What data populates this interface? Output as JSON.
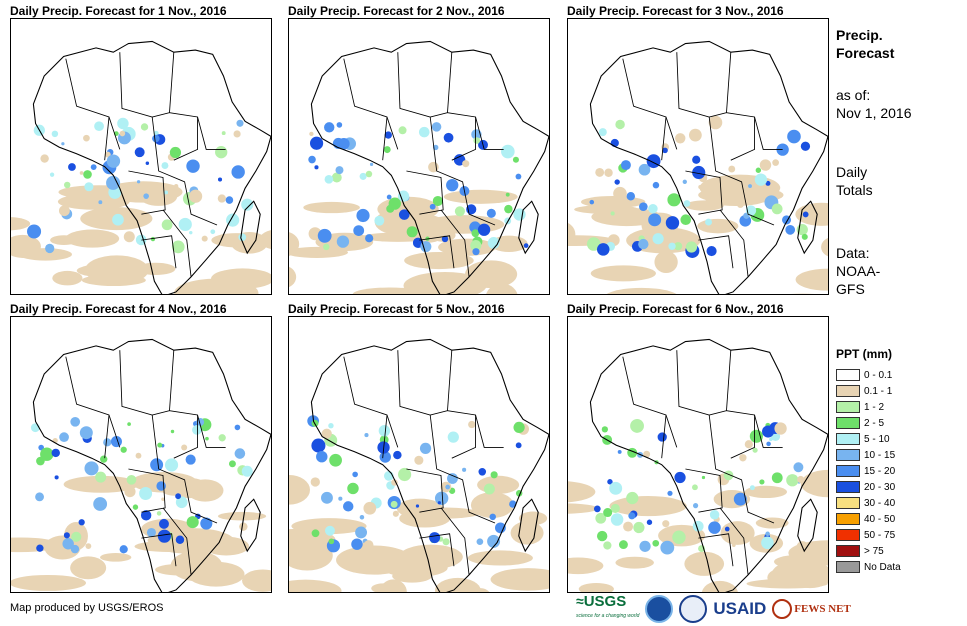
{
  "panels": [
    {
      "title": "Daily Precip. Forecast for 1 Nov., 2016"
    },
    {
      "title": "Daily Precip. Forecast for 2 Nov., 2016"
    },
    {
      "title": "Daily Precip. Forecast for 3 Nov., 2016"
    },
    {
      "title": "Daily Precip. Forecast for 4 Nov., 2016"
    },
    {
      "title": "Daily Precip. Forecast for 5 Nov., 2016"
    },
    {
      "title": "Daily Precip. Forecast for 6 Nov., 2016"
    }
  ],
  "info": {
    "title_line1": "Precip.",
    "title_line2": "Forecast",
    "asof_label": "as of:",
    "asof_date": "Nov 1, 2016",
    "totals_line1": "Daily",
    "totals_line2": "Totals",
    "data_line1": "Data:",
    "data_line2": "NOAA-",
    "data_line3": "GFS"
  },
  "legend": {
    "title": "PPT (mm)",
    "items": [
      {
        "label": "0 - 0.1",
        "color": "#ffffff"
      },
      {
        "label": "0.1 - 1",
        "color": "#e8d4b4"
      },
      {
        "label": "1 - 2",
        "color": "#b4f0a8"
      },
      {
        "label": "2 - 5",
        "color": "#6ee06a"
      },
      {
        "label": "5 - 10",
        "color": "#b0f0f4"
      },
      {
        "label": "10 - 15",
        "color": "#78b4f0"
      },
      {
        "label": "15 - 20",
        "color": "#4a8ef0"
      },
      {
        "label": "20 - 30",
        "color": "#1a50e0"
      },
      {
        "label": "30 - 40",
        "color": "#f8e080"
      },
      {
        "label": "40 - 50",
        "color": "#f8a000"
      },
      {
        "label": "50 - 75",
        "color": "#f03000"
      },
      {
        "label": "> 75",
        "color": "#a01010"
      },
      {
        "label": "No Data",
        "color": "#999999"
      }
    ]
  },
  "credit": "Map produced by USGS/EROS",
  "logos": {
    "usgs": "USGS",
    "usgs_tag": "science for a changing world",
    "usaid": "USAID",
    "fews": "FEWS NET"
  }
}
